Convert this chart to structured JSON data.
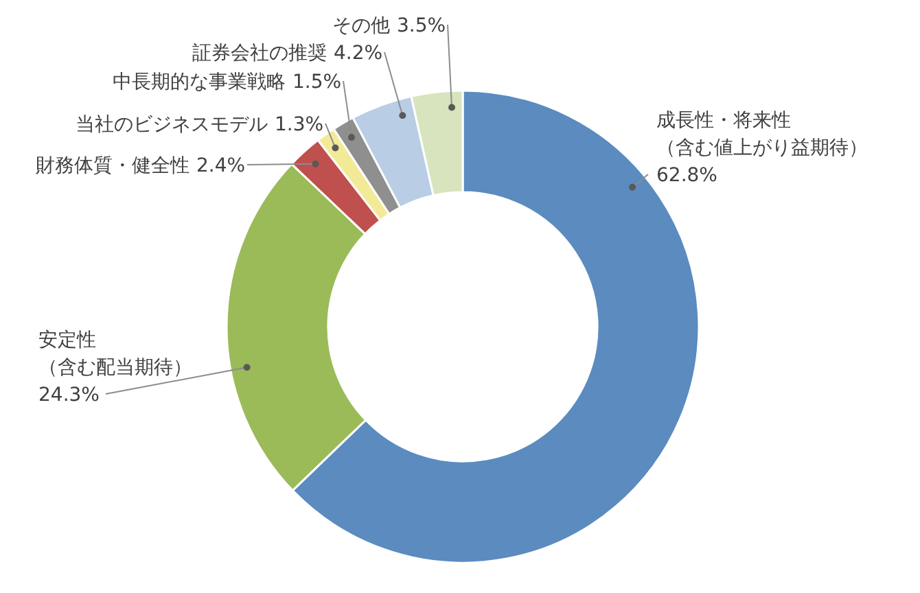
{
  "chart_data": {
    "type": "donut",
    "categories": [
      "成長性・将来性（含む値上がり益期待）",
      "安定性（含む配当期待）",
      "財務体質・健全性",
      "当社のビジネスモデル",
      "中長期的な事業戦略",
      "証券会社の推奨",
      "その他"
    ],
    "values": [
      62.8,
      24.3,
      2.4,
      1.3,
      1.5,
      4.2,
      3.5
    ],
    "value_labels": [
      "62.8%",
      "24.3%",
      "2.4%",
      "1.3%",
      "1.5%",
      "4.2%",
      "3.5%"
    ],
    "colors": [
      "#5b8bbf",
      "#9bbb59",
      "#c0504d",
      "#f3ea97",
      "#8f8f8f",
      "#b9cde5",
      "#d7e4bd"
    ]
  }
}
